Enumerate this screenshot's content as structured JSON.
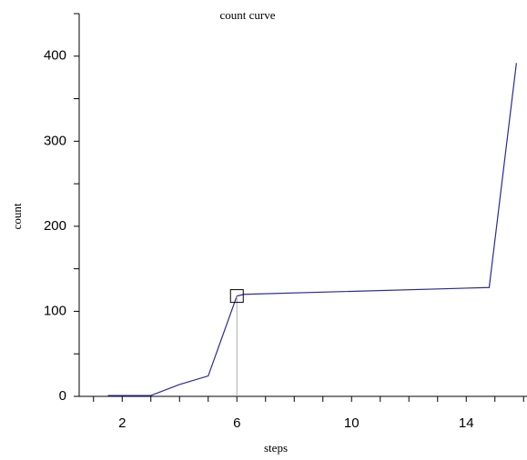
{
  "chart_data": {
    "type": "line",
    "title": "count curve",
    "x_label": "steps",
    "y_label": "count",
    "x": [
      1.5,
      3,
      4,
      5,
      6,
      6.25,
      14.8,
      15.75
    ],
    "series": [
      {
        "name": "count",
        "color": "#2a2a9a",
        "values": [
          1,
          1,
          14,
          24,
          118,
          120,
          128,
          392
        ]
      }
    ],
    "xlim": [
      0.5,
      16.5
    ],
    "ylim": [
      0,
      450
    ],
    "xticks": [
      2,
      6,
      10,
      14
    ],
    "yticks": [
      0,
      100,
      200,
      300,
      400
    ],
    "xminorticks": [
      1,
      3,
      4,
      5,
      7,
      8,
      9,
      11,
      12,
      13,
      15,
      16
    ],
    "yminorticks": [
      50,
      150,
      250,
      350,
      450
    ],
    "highlight_index": 4
  }
}
